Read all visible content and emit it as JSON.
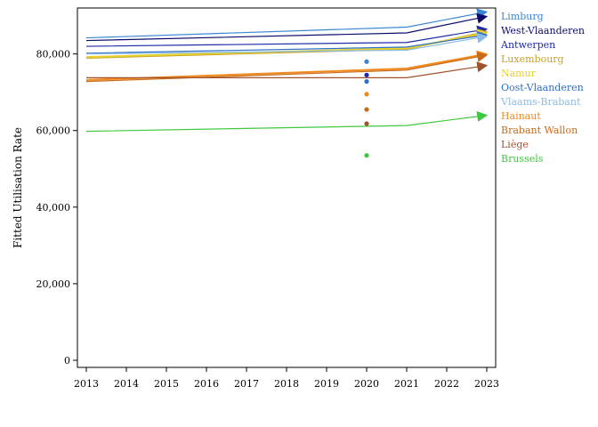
{
  "chart_data": {
    "type": "line",
    "title": "",
    "xlabel": "",
    "ylabel": "Fitted Utilisation Rate",
    "xlim": [
      2013,
      2023
    ],
    "ylim": [
      0,
      92000
    ],
    "x_ticks": [
      2013,
      2014,
      2015,
      2016,
      2017,
      2018,
      2019,
      2020,
      2021,
      2022,
      2023
    ],
    "y_ticks": [
      0,
      20000,
      40000,
      60000,
      80000
    ],
    "y_tick_labels": [
      "0",
      "20,000",
      "40,000",
      "60,000",
      "80,000"
    ],
    "grid": false,
    "legend_position": "right",
    "series": [
      {
        "name": "Limburg",
        "color": "#3a86d4",
        "x": [
          2013,
          2021,
          2023
        ],
        "y": [
          84200,
          87000,
          91000
        ],
        "point_2020": 78000
      },
      {
        "name": "West-Vlaanderen",
        "color": "#0b0b6b",
        "x": [
          2013,
          2021,
          2023
        ],
        "y": [
          83500,
          85500,
          89800
        ],
        "point_2020": null
      },
      {
        "name": "Antwerpen",
        "color": "#1e2aa8",
        "x": [
          2013,
          2021,
          2023
        ],
        "y": [
          82000,
          83000,
          86500
        ],
        "point_2020": 74500
      },
      {
        "name": "Luxembourg",
        "color": "#c9a227",
        "x": [
          2013,
          2021,
          2023
        ],
        "y": [
          79000,
          81300,
          85800
        ],
        "point_2020": null
      },
      {
        "name": "Namur",
        "color": "#e6d22b",
        "x": [
          2013,
          2021,
          2023
        ],
        "y": [
          79200,
          81500,
          85500
        ],
        "point_2020": null
      },
      {
        "name": "Oost-Vlaanderen",
        "color": "#2f6fc7",
        "x": [
          2013,
          2021,
          2023
        ],
        "y": [
          80200,
          81800,
          85000
        ],
        "point_2020": 72800
      },
      {
        "name": "Vlaams-Brabant",
        "color": "#8cbce6",
        "x": [
          2013,
          2021,
          2023
        ],
        "y": [
          80000,
          81000,
          84600
        ],
        "point_2020": null
      },
      {
        "name": "Hainaut",
        "color": "#f08a1c",
        "x": [
          2013,
          2021,
          2023
        ],
        "y": [
          73200,
          76200,
          80000
        ],
        "point_2020": 69500
      },
      {
        "name": "Brabant Wallon",
        "color": "#c96a18",
        "x": [
          2013,
          2021,
          2023
        ],
        "y": [
          72800,
          75800,
          79700
        ],
        "point_2020": 65500
      },
      {
        "name": "Liège",
        "color": "#a0522d",
        "x": [
          2013,
          2021,
          2023
        ],
        "y": [
          73800,
          73800,
          77000
        ],
        "point_2020": 61800
      },
      {
        "name": "Brussels",
        "color": "#3fc83f",
        "x": [
          2013,
          2021,
          2023
        ],
        "y": [
          59800,
          61300,
          64000
        ],
        "point_2020": 53500
      }
    ]
  }
}
